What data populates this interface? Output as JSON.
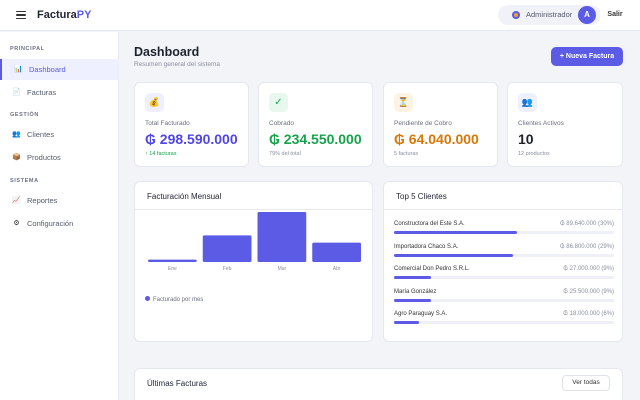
{
  "app": {
    "brand_main": "Factura",
    "brand_accent": "PY",
    "accent_color": "#5b5be6"
  },
  "topbar": {
    "user_name": "Administrador",
    "avatar_initial": "A",
    "logout_label": "Salir"
  },
  "sidebar": {
    "sections": [
      "PRINCIPAL",
      "GESTIÓN",
      "SISTEMA"
    ],
    "items": [
      {
        "label": "Dashboard",
        "icon": "chart-icon",
        "glyph": "📊",
        "active": true
      },
      {
        "label": "Facturas",
        "icon": "document-icon",
        "glyph": "📄",
        "active": false
      },
      {
        "label": "Clientes",
        "icon": "users-icon",
        "glyph": "👥",
        "active": false
      },
      {
        "label": "Productos",
        "icon": "box-icon",
        "glyph": "📦",
        "active": false
      },
      {
        "label": "Reportes",
        "icon": "trend-icon",
        "glyph": "📈",
        "active": false
      },
      {
        "label": "Configuración",
        "icon": "gear-icon",
        "glyph": "⚙",
        "active": false
      }
    ]
  },
  "header": {
    "title": "Dashboard",
    "subtitle": "Resumen general del sistema",
    "new_button": "+ Nueva Factura"
  },
  "stats": [
    {
      "label": "Total Facturado",
      "value": "₲ 298.590.000",
      "foot": "↑ 14 facturas",
      "icon": "money-bag-icon",
      "glyph": "💰",
      "color": "#4f46e5",
      "icon_bg": "#eef0ff",
      "foot_color": "#16a34a"
    },
    {
      "label": "Cobrado",
      "value": "₲ 234.550.000",
      "foot": "79% del total",
      "icon": "check-icon",
      "glyph": "✓",
      "color": "#16a34a",
      "icon_bg": "#e8f8ee",
      "foot_color": "#8a8fa0"
    },
    {
      "label": "Pendiente de Cobro",
      "value": "₲ 64.040.000",
      "foot": "5 facturas",
      "icon": "hourglass-icon",
      "glyph": "⏳",
      "color": "#d97706",
      "icon_bg": "#fdf3e3",
      "foot_color": "#8a8fa0"
    },
    {
      "label": "Clientes Activos",
      "value": "10",
      "foot": "12 productos",
      "icon": "users-icon",
      "glyph": "👥",
      "color": "#1f2330",
      "icon_bg": "#eef0ff",
      "foot_color": "#8a8fa0"
    }
  ],
  "chart": {
    "title": "Facturación Mensual",
    "legend": "Facturado por mes"
  },
  "chart_data": {
    "type": "bar",
    "title": "Facturación Mensual",
    "categories": [
      "Ene",
      "Feb",
      "Mar",
      "Abr"
    ],
    "series": [
      {
        "name": "Facturado por mes",
        "values": [
          3,
          33,
          62,
          24
        ]
      }
    ],
    "ylim": [
      0,
      62
    ],
    "grid": false,
    "legend": "bottom-left",
    "color": "#5b5be6"
  },
  "top_clients": {
    "title": "Top 5 Clientes",
    "items": [
      {
        "name": "Constructora del Este S.A.",
        "value": "₲ 89.640.000 (30%)",
        "pct": 0.3
      },
      {
        "name": "Importadora Chaco S.A.",
        "value": "₲ 86.800.000 (29%)",
        "pct": 0.29
      },
      {
        "name": "Comercial Don Pedro S.R.L.",
        "value": "₲ 27.000.000 (9%)",
        "pct": 0.09
      },
      {
        "name": "María González",
        "value": "₲ 25.500.000 (9%)",
        "pct": 0.09
      },
      {
        "name": "Agro Paraguay S.A.",
        "value": "₲ 18.000.000 (6%)",
        "pct": 0.06
      }
    ]
  },
  "invoices": {
    "title": "Últimas Facturas",
    "view_all": "Ver todas"
  }
}
